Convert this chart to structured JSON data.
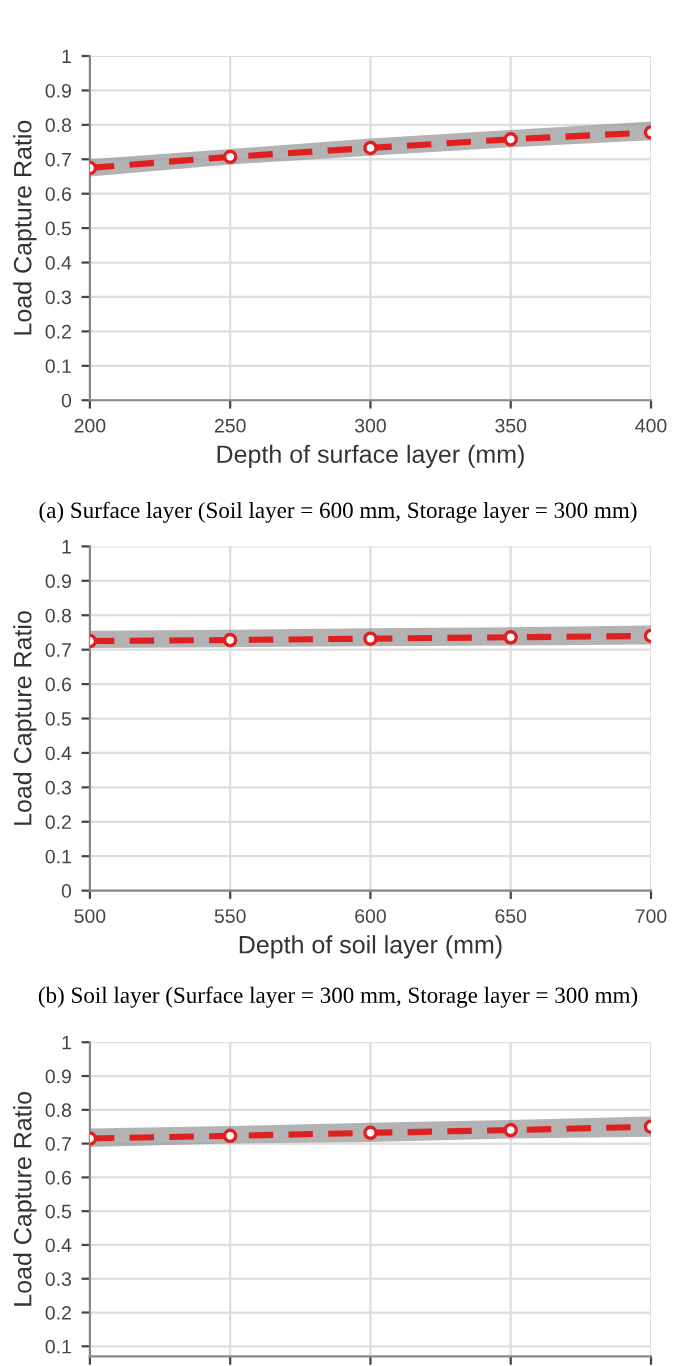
{
  "chart_data": [
    {
      "type": "line",
      "xlabel": "Depth of surface layer (mm)",
      "ylabel": "Load Capture Ratio",
      "annotations": [
        "(a) Surface layer (Soil layer = 600 mm, Storage layer = 300 mm)"
      ],
      "x": [
        200,
        250,
        300,
        350,
        400
      ],
      "xlim": [
        200,
        400
      ],
      "xticks": [
        200,
        250,
        300,
        350,
        400
      ],
      "ylim": [
        0,
        1
      ],
      "yticks": [
        0,
        0.1,
        0.2,
        0.3,
        0.4,
        0.5,
        0.6,
        0.7,
        0.8,
        0.9,
        1
      ],
      "grid": true,
      "marker": "circle",
      "line_style": "dashed",
      "series": [
        {
          "color": "#e02020",
          "values": [
            0.675,
            0.707,
            0.733,
            0.758,
            0.778
          ],
          "lower": [
            0.65,
            0.685,
            0.71,
            0.735,
            0.755
          ],
          "upper": [
            0.7,
            0.73,
            0.76,
            0.785,
            0.81
          ]
        }
      ]
    },
    {
      "type": "line",
      "xlabel": "Depth of soil layer (mm)",
      "ylabel": "Load Capture Ratio",
      "annotations": [
        "(b) Soil layer (Surface layer = 300 mm, Storage layer = 300 mm)"
      ],
      "x": [
        500,
        550,
        600,
        650,
        700
      ],
      "xlim": [
        500,
        700
      ],
      "xticks": [
        500,
        550,
        600,
        650,
        700
      ],
      "ylim": [
        0,
        1
      ],
      "yticks": [
        0,
        0.1,
        0.2,
        0.3,
        0.4,
        0.5,
        0.6,
        0.7,
        0.8,
        0.9,
        1
      ],
      "grid": true,
      "marker": "circle",
      "line_style": "dashed",
      "series": [
        {
          "color": "#e02020",
          "values": [
            0.725,
            0.728,
            0.732,
            0.736,
            0.74
          ],
          "lower": [
            0.705,
            0.707,
            0.71,
            0.712,
            0.715
          ],
          "upper": [
            0.755,
            0.758,
            0.762,
            0.765,
            0.77
          ]
        }
      ]
    },
    {
      "type": "line",
      "ylabel": "Load Capture Ratio",
      "categories": [
        null,
        null,
        null,
        null,
        null
      ],
      "tick_labels": "y",
      "ylim": [
        0.07,
        1
      ],
      "yticks": [
        0.1,
        0.2,
        0.3,
        0.4,
        0.5,
        0.6,
        0.7,
        0.8,
        0.9,
        1
      ],
      "grid": true,
      "marker": "circle",
      "line_style": "dashed",
      "series": [
        {
          "color": "#e02020",
          "values": [
            0.715,
            0.723,
            0.732,
            0.74,
            0.75
          ],
          "lower": [
            0.69,
            0.7,
            0.705,
            0.715,
            0.72
          ],
          "upper": [
            0.745,
            0.752,
            0.762,
            0.77,
            0.78
          ]
        }
      ]
    }
  ]
}
